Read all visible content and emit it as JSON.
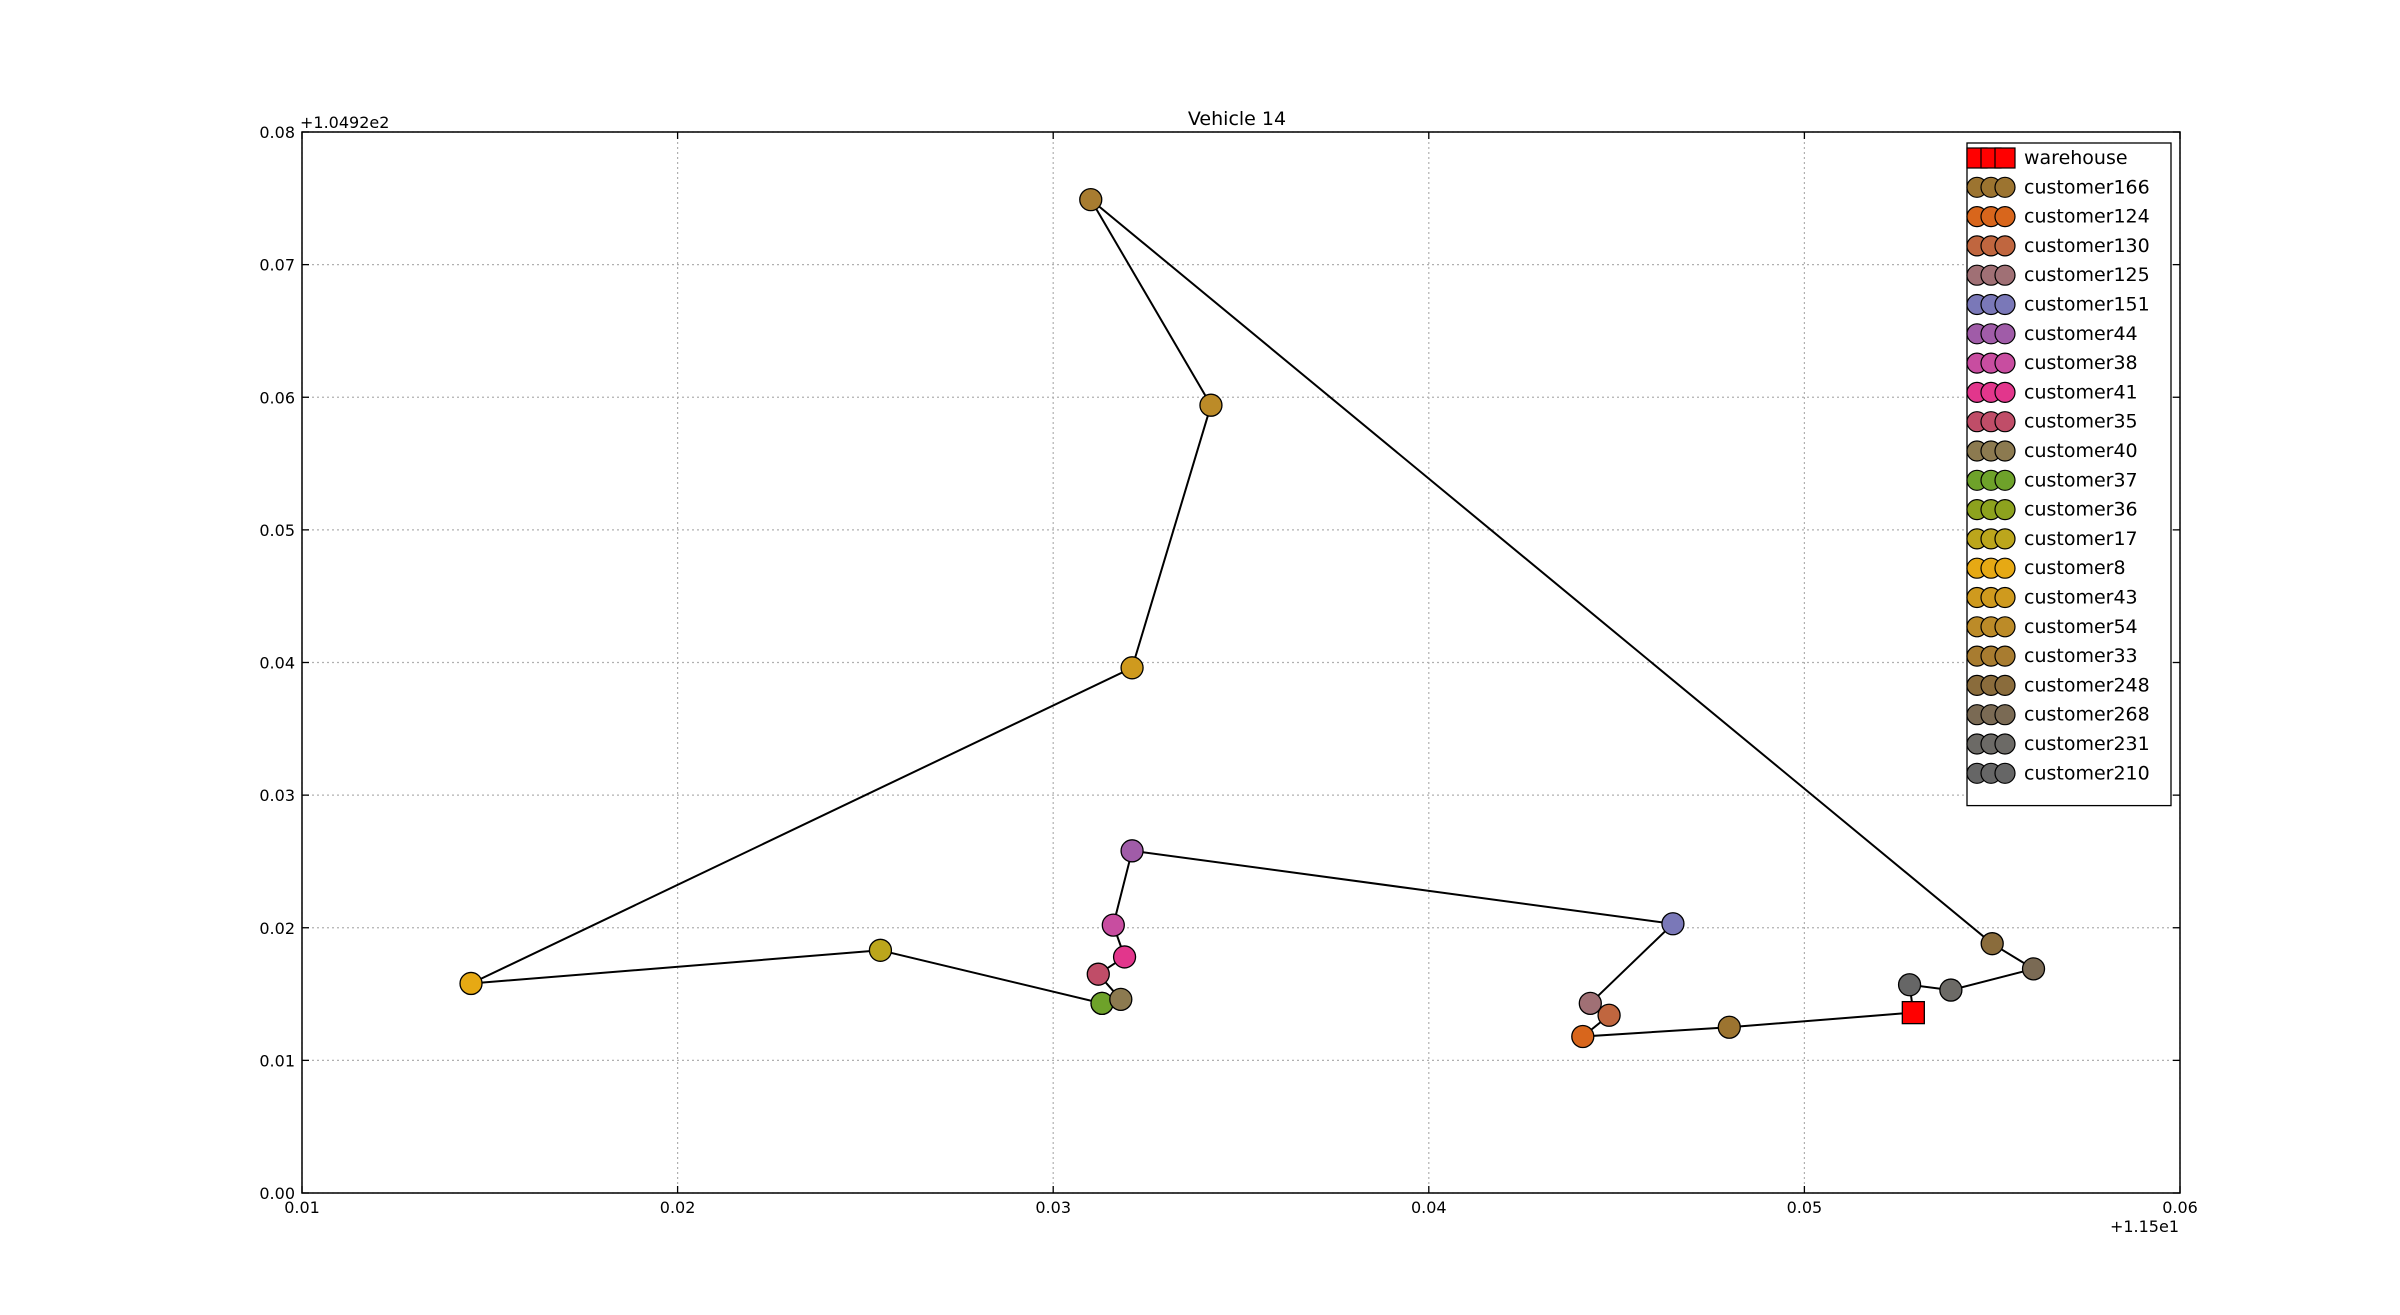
{
  "chart_data": {
    "type": "scatter",
    "title": "Vehicle 14",
    "xlabel": "",
    "ylabel": "",
    "x_offset_label": "+1.15e1",
    "y_offset_label": "+1.0492e2",
    "xlim": [
      0.01,
      0.06
    ],
    "ylim": [
      0.0,
      0.08
    ],
    "x_ticks": [
      0.01,
      0.02,
      0.03,
      0.04,
      0.05,
      0.06
    ],
    "x_tick_labels": [
      "0.01",
      "0.02",
      "0.03",
      "0.04",
      "0.05",
      "0.06"
    ],
    "y_ticks": [
      0.0,
      0.01,
      0.02,
      0.03,
      0.04,
      0.05,
      0.06,
      0.07,
      0.08
    ],
    "y_tick_labels": [
      "0.00",
      "0.01",
      "0.02",
      "0.03",
      "0.04",
      "0.05",
      "0.06",
      "0.07",
      "0.08"
    ],
    "grid": true,
    "legend_position": "top-right",
    "route_color": "#000000",
    "points": [
      {
        "name": "warehouse",
        "x": 0.0529,
        "y": 0.0136,
        "color": "#ff0000",
        "marker": "square"
      },
      {
        "name": "customer166",
        "x": 0.048,
        "y": 0.0125,
        "color": "#9c7430",
        "marker": "circle"
      },
      {
        "name": "customer124",
        "x": 0.0441,
        "y": 0.0118,
        "color": "#d8661c",
        "marker": "circle"
      },
      {
        "name": "customer130",
        "x": 0.0448,
        "y": 0.0134,
        "color": "#c0663f",
        "marker": "circle"
      },
      {
        "name": "customer125",
        "x": 0.0443,
        "y": 0.0143,
        "color": "#a07075",
        "marker": "circle"
      },
      {
        "name": "customer151",
        "x": 0.0465,
        "y": 0.0203,
        "color": "#7a78b8",
        "marker": "circle"
      },
      {
        "name": "customer44",
        "x": 0.0321,
        "y": 0.0258,
        "color": "#a05ca8",
        "marker": "circle"
      },
      {
        "name": "customer38",
        "x": 0.0316,
        "y": 0.0202,
        "color": "#c84da0",
        "marker": "circle"
      },
      {
        "name": "customer41",
        "x": 0.0319,
        "y": 0.0178,
        "color": "#e2368c",
        "marker": "circle"
      },
      {
        "name": "customer35",
        "x": 0.0312,
        "y": 0.0165,
        "color": "#c04d68",
        "marker": "circle"
      },
      {
        "name": "customer40",
        "x": 0.0318,
        "y": 0.0146,
        "color": "#8c7a50",
        "marker": "circle"
      },
      {
        "name": "customer37",
        "x": 0.0313,
        "y": 0.0143,
        "color": "#6ea22a",
        "marker": "circle"
      },
      {
        "name": "customer36",
        "x": 0.0313,
        "y": 0.0143,
        "color": "#8da21e",
        "marker": "circle"
      },
      {
        "name": "customer17",
        "x": 0.0254,
        "y": 0.0183,
        "color": "#bca61c",
        "marker": "circle"
      },
      {
        "name": "customer8",
        "x": 0.0145,
        "y": 0.0158,
        "color": "#e6a914",
        "marker": "circle"
      },
      {
        "name": "customer43",
        "x": 0.0321,
        "y": 0.0396,
        "color": "#cf9a1e",
        "marker": "circle"
      },
      {
        "name": "customer54",
        "x": 0.0342,
        "y": 0.0594,
        "color": "#bc8b28",
        "marker": "circle"
      },
      {
        "name": "customer33",
        "x": 0.031,
        "y": 0.0749,
        "color": "#a87c30",
        "marker": "circle"
      },
      {
        "name": "customer248",
        "x": 0.055,
        "y": 0.0188,
        "color": "#8a6c3c",
        "marker": "circle"
      },
      {
        "name": "customer268",
        "x": 0.0561,
        "y": 0.0169,
        "color": "#7a6a54",
        "marker": "circle"
      },
      {
        "name": "customer231",
        "x": 0.0539,
        "y": 0.0153,
        "color": "#6c6a66",
        "marker": "circle"
      },
      {
        "name": "customer210",
        "x": 0.0528,
        "y": 0.0157,
        "color": "#666666",
        "marker": "circle"
      }
    ]
  }
}
